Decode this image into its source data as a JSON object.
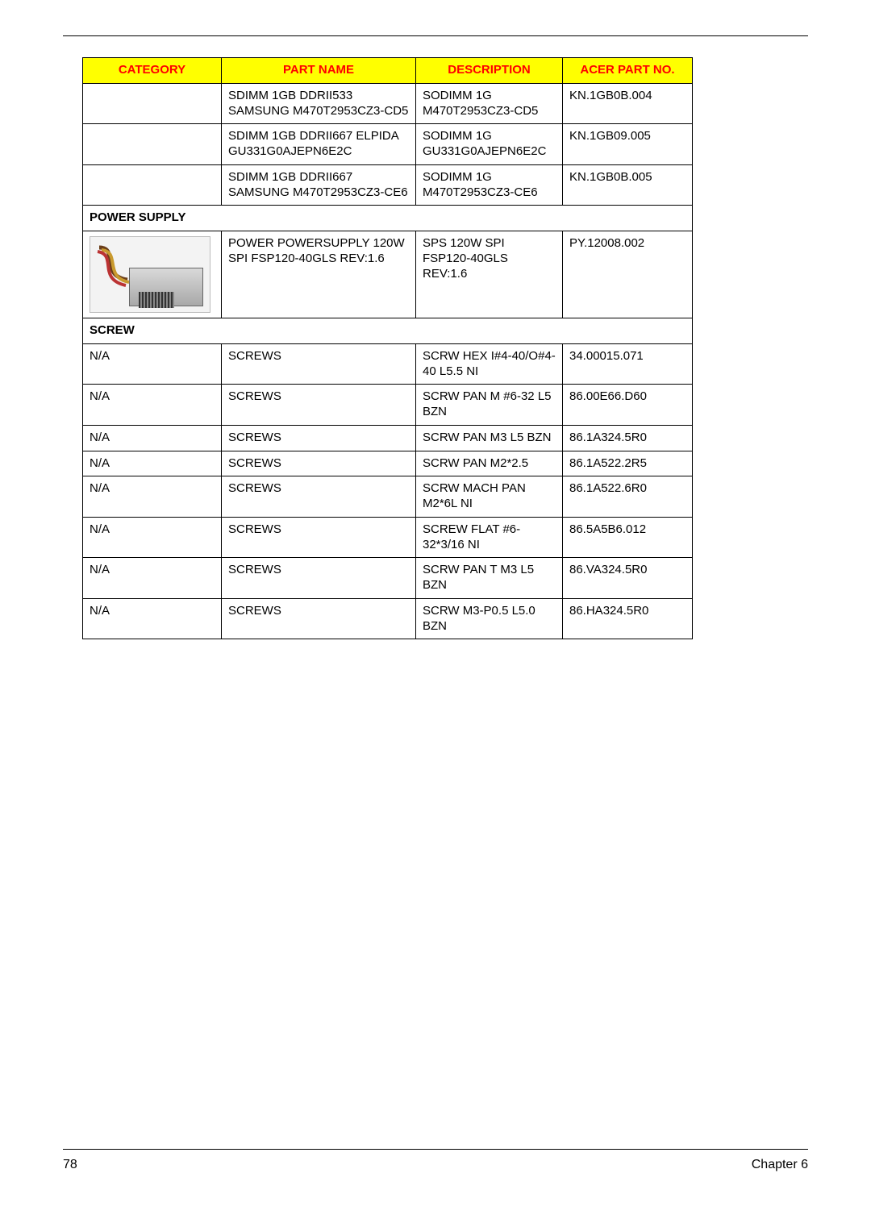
{
  "header": {
    "columns": [
      "CATEGORY",
      "PART NAME",
      "DESCRIPTION",
      "ACER PART NO."
    ]
  },
  "rows": [
    {
      "type": "data",
      "category": "",
      "part": "SDIMM 1GB DDRII533 SAMSUNG M470T2953CZ3-CD5",
      "desc": "SODIMM 1G M470T2953CZ3-CD5",
      "partno": "KN.1GB0B.004"
    },
    {
      "type": "data",
      "category": "",
      "part": "SDIMM 1GB DDRII667 ELPIDA GU331G0AJEPN6E2C",
      "desc": "SODIMM 1G GU331G0AJEPN6E2C",
      "partno": "KN.1GB09.005"
    },
    {
      "type": "data",
      "category": "",
      "part": "SDIMM 1GB DDRII667 SAMSUNG M470T2953CZ3-CE6",
      "desc": "SODIMM 1G M470T2953CZ3-CE6",
      "partno": "KN.1GB0B.005"
    },
    {
      "type": "section",
      "label": "POWER SUPPLY"
    },
    {
      "type": "psu",
      "part": "POWER POWERSUPPLY 120W SPI FSP120-40GLS REV:1.6",
      "desc": "SPS 120W SPI FSP120-40GLS REV:1.6",
      "partno": "PY.12008.002"
    },
    {
      "type": "section",
      "label": "SCREW"
    },
    {
      "type": "data",
      "category": "N/A",
      "part": "SCREWS",
      "desc": "SCRW HEX I#4-40/O#4-40 L5.5 NI",
      "partno": "34.00015.071"
    },
    {
      "type": "data",
      "category": "N/A",
      "part": "SCREWS",
      "desc": "SCRW PAN M #6-32 L5 BZN",
      "partno": "86.00E66.D60"
    },
    {
      "type": "data",
      "category": "N/A",
      "part": "SCREWS",
      "desc": "SCRW PAN M3 L5 BZN",
      "partno": "86.1A324.5R0"
    },
    {
      "type": "data",
      "category": "N/A",
      "part": "SCREWS",
      "desc": "SCRW PAN M2*2.5",
      "partno": "86.1A522.2R5"
    },
    {
      "type": "data",
      "category": "N/A",
      "part": "SCREWS",
      "desc": "SCRW MACH PAN M2*6L NI",
      "partno": "86.1A522.6R0"
    },
    {
      "type": "data",
      "category": "N/A",
      "part": "SCREWS",
      "desc": "SCREW FLAT #6-32*3/16 NI",
      "partno": "86.5A5B6.012"
    },
    {
      "type": "data",
      "category": "N/A",
      "part": "SCREWS",
      "desc": "SCRW PAN T M3 L5 BZN",
      "partno": "86.VA324.5R0"
    },
    {
      "type": "data",
      "category": "N/A",
      "part": "SCREWS",
      "desc": "SCRW M3-P0.5 L5.0 BZN",
      "partno": "86.HA324.5R0"
    }
  ],
  "footer": {
    "page": "78",
    "chapter": "Chapter 6"
  }
}
